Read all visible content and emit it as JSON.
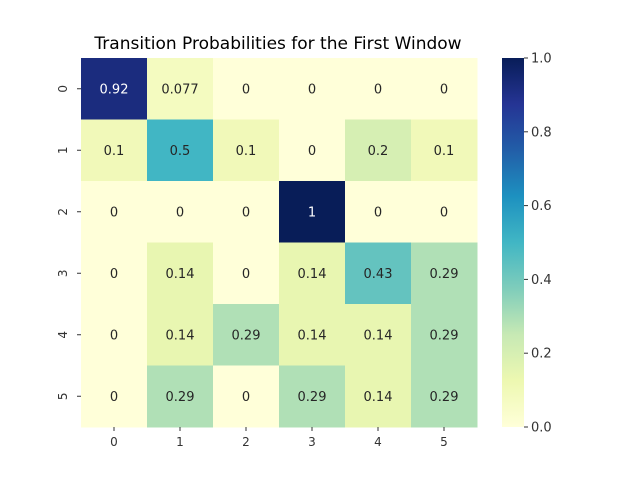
{
  "chart_data": {
    "type": "heatmap",
    "title": "Transition Probabilities for the First Window",
    "xlabel": "",
    "ylabel": "",
    "x_categories": [
      "0",
      "1",
      "2",
      "3",
      "4",
      "5"
    ],
    "y_categories": [
      "0",
      "1",
      "2",
      "3",
      "4",
      "5"
    ],
    "values": [
      [
        0.92,
        0.077,
        0,
        0,
        0,
        0
      ],
      [
        0.1,
        0.5,
        0.1,
        0,
        0.2,
        0.1
      ],
      [
        0,
        0,
        0,
        1,
        0,
        0
      ],
      [
        0,
        0.14,
        0,
        0.14,
        0.43,
        0.29
      ],
      [
        0,
        0.14,
        0.29,
        0.14,
        0.14,
        0.29
      ],
      [
        0,
        0.29,
        0,
        0.29,
        0.14,
        0.29
      ]
    ],
    "value_labels": [
      [
        "0.92",
        "0.077",
        "0",
        "0",
        "0",
        "0"
      ],
      [
        "0.1",
        "0.5",
        "0.1",
        "0",
        "0.2",
        "0.1"
      ],
      [
        "0",
        "0",
        "0",
        "1",
        "0",
        "0"
      ],
      [
        "0",
        "0.14",
        "0",
        "0.14",
        "0.43",
        "0.29"
      ],
      [
        "0",
        "0.14",
        "0.29",
        "0.14",
        "0.14",
        "0.29"
      ],
      [
        "0",
        "0.29",
        "0",
        "0.29",
        "0.14",
        "0.29"
      ]
    ],
    "colormap": "YlGnBu",
    "vmin": 0,
    "vmax": 1,
    "colorbar_ticks": [
      "0.0",
      "0.2",
      "0.4",
      "0.6",
      "0.8",
      "1.0"
    ],
    "colorbar_tick_values": [
      0,
      0.2,
      0.4,
      0.6,
      0.8,
      1.0
    ],
    "grid": false
  }
}
